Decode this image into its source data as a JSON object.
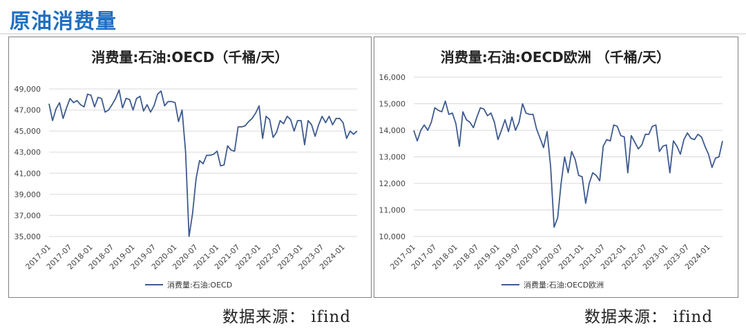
{
  "page": {
    "title": "原油消费量"
  },
  "sources": {
    "left": "数据来源：  ifind",
    "right": "数据来源：  ifind"
  },
  "colors": {
    "title": "#1f6fc2",
    "line": "#3d5a8f",
    "grid": "#d9d9d9"
  },
  "chart_data": [
    {
      "type": "line",
      "title": "消费量:石油:OECD（千桶/天）",
      "legend": "消费量:石油:OECD",
      "legend_position": "bottom",
      "grid": true,
      "ylim": [
        35000,
        49000
      ],
      "yticks": [
        35000,
        37000,
        39000,
        41000,
        43000,
        45000,
        47000,
        49000
      ],
      "ytick_labels": [
        "35,000",
        "37,000",
        "39,000",
        "41,000",
        "43,000",
        "45,000",
        "47,000",
        "49,000"
      ],
      "xticks": [
        "2017-01",
        "2017-07",
        "2018-01",
        "2018-07",
        "2019-01",
        "2019-07",
        "2020-01",
        "2020-07",
        "2021-01",
        "2021-07",
        "2022-01",
        "2022-07",
        "2023-01",
        "2023-07",
        "2024-01"
      ],
      "x_start": "2017-01",
      "series": [
        {
          "name": "消费量:石油:OECD",
          "values": [
            47600,
            46000,
            47100,
            47700,
            46200,
            47200,
            48100,
            47700,
            47900,
            47500,
            47300,
            48500,
            48400,
            47300,
            48200,
            48100,
            46800,
            47000,
            47500,
            48100,
            48900,
            47200,
            48100,
            48000,
            47000,
            48100,
            48300,
            46900,
            47500,
            46800,
            47400,
            48500,
            48800,
            47400,
            47800,
            47800,
            47700,
            45900,
            47000,
            43000,
            35000,
            37200,
            40500,
            42200,
            41900,
            42700,
            42700,
            42800,
            43100,
            41700,
            41800,
            43600,
            43200,
            43100,
            45400,
            45400,
            45500,
            45900,
            46200,
            46700,
            47400,
            44300,
            46400,
            46100,
            44400,
            44900,
            46000,
            45700,
            46400,
            46100,
            45000,
            46000,
            46000,
            43700,
            46000,
            45600,
            44500,
            45600,
            46400,
            45800,
            46400,
            45600,
            46200,
            46200,
            45800,
            44300,
            45000,
            44700,
            45000
          ]
        }
      ]
    },
    {
      "type": "line",
      "title": "消费量:石油:OECD欧洲 （千桶/天）",
      "legend": "消费量:石油:OECD欧洲",
      "legend_position": "bottom",
      "grid": true,
      "ylim": [
        10000,
        16000
      ],
      "yticks": [
        10000,
        11000,
        12000,
        13000,
        14000,
        15000,
        16000
      ],
      "ytick_labels": [
        "10,000",
        "11,000",
        "12,000",
        "13,000",
        "14,000",
        "15,000",
        "16,000"
      ],
      "xticks": [
        "2017-01",
        "2017-07",
        "2018-01",
        "2018-07",
        "2019-01",
        "2019-07",
        "2020-01",
        "2020-07",
        "2021-01",
        "2021-07",
        "2022-01",
        "2022-07",
        "2023-01",
        "2023-07",
        "2024-01"
      ],
      "x_start": "2017-01",
      "series": [
        {
          "name": "消费量:石油:OECD欧洲",
          "values": [
            14000,
            13600,
            14000,
            14200,
            14000,
            14300,
            14850,
            14750,
            14700,
            15100,
            14600,
            14650,
            14250,
            13400,
            14700,
            14400,
            14300,
            14100,
            14500,
            14850,
            14800,
            14550,
            14650,
            14300,
            13650,
            14000,
            14400,
            13950,
            14500,
            14000,
            14300,
            15000,
            14650,
            14600,
            14600,
            14050,
            13700,
            13350,
            13950,
            12650,
            10350,
            10700,
            12000,
            13000,
            12400,
            13200,
            12900,
            12300,
            12250,
            11250,
            12000,
            12400,
            12300,
            12100,
            13400,
            13650,
            13600,
            14200,
            14150,
            13800,
            13750,
            12400,
            13800,
            13550,
            13300,
            13450,
            13850,
            13850,
            14150,
            14200,
            13200,
            13400,
            13450,
            12400,
            13600,
            13400,
            13100,
            13650,
            13900,
            13700,
            13650,
            13850,
            13750,
            13400,
            13100,
            12600,
            12950,
            13000,
            13600
          ]
        }
      ]
    }
  ]
}
